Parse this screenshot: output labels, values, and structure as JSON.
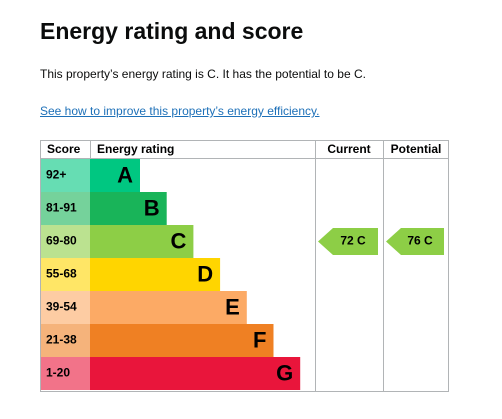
{
  "header": {
    "title": "Energy rating and score"
  },
  "summary": "This property’s energy rating is C. It has the potential to be C.",
  "link": "See how to improve this property’s energy efficiency.",
  "table": {
    "columns": [
      "Score",
      "Energy rating",
      "Current",
      "Potential"
    ],
    "bands": [
      {
        "score": "92+",
        "letter": "A",
        "color": "#00c781"
      },
      {
        "score": "81-91",
        "letter": "B",
        "color": "#19b459"
      },
      {
        "score": "69-80",
        "letter": "C",
        "color": "#8dce46",
        "current": "72 C",
        "potential": "76 C"
      },
      {
        "score": "55-68",
        "letter": "D",
        "color": "#ffd500"
      },
      {
        "score": "39-54",
        "letter": "E",
        "color": "#fcaa65"
      },
      {
        "score": "21-38",
        "letter": "F",
        "color": "#ef8023"
      },
      {
        "score": "1-20",
        "letter": "G",
        "color": "#e9153b"
      }
    ]
  }
}
